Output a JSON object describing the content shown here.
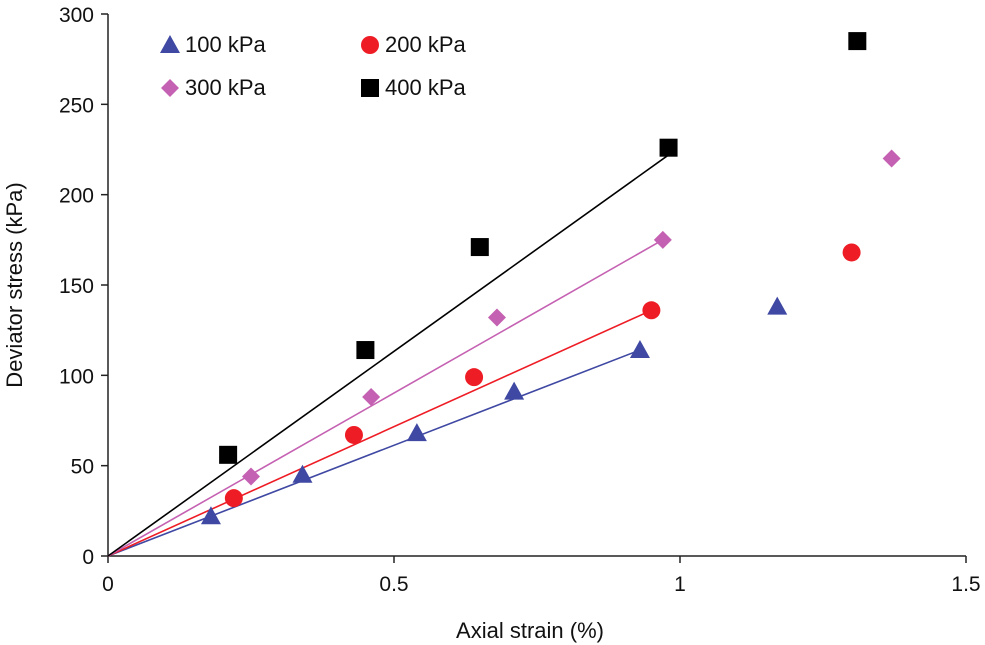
{
  "chart_data": {
    "type": "scatter",
    "title": "",
    "xlabel": "Axial strain (%)",
    "ylabel": "Deviator stress (kPa)",
    "xlim": [
      0,
      1.5
    ],
    "ylim": [
      0,
      300
    ],
    "x_ticks": [
      0,
      0.5,
      1,
      1.5
    ],
    "x_tick_labels": [
      "0",
      "0.5",
      "1",
      "1.5"
    ],
    "y_ticks": [
      0,
      50,
      100,
      150,
      200,
      250,
      300
    ],
    "y_tick_labels": [
      "0",
      "50",
      "100",
      "150",
      "200",
      "250",
      "300"
    ],
    "grid": false,
    "legend": "top-left",
    "series": [
      {
        "name": "100 kPa",
        "marker": "triangle",
        "color": "#3F48A2",
        "line_color": "#3F48A2",
        "x": [
          0.18,
          0.34,
          0.54,
          0.71,
          0.93,
          1.17
        ],
        "y": [
          22,
          45,
          68,
          91,
          114,
          138
        ],
        "fit_line": {
          "x": [
            0,
            0.93
          ],
          "y": [
            0,
            114
          ]
        }
      },
      {
        "name": "200 kPa",
        "marker": "circle",
        "color": "#EE1C25",
        "line_color": "#EE1C25",
        "x": [
          0.22,
          0.43,
          0.64,
          0.95,
          1.3
        ],
        "y": [
          32,
          67,
          99,
          136,
          168
        ],
        "fit_line": {
          "x": [
            0,
            0.95
          ],
          "y": [
            0,
            136
          ]
        }
      },
      {
        "name": "300 kPa",
        "marker": "diamond",
        "color": "#C561B2",
        "line_color": "#C561B2",
        "x": [
          0.25,
          0.46,
          0.68,
          0.97,
          1.37
        ],
        "y": [
          44,
          88,
          132,
          175,
          220
        ],
        "fit_line": {
          "x": [
            0,
            0.97
          ],
          "y": [
            0,
            175
          ]
        }
      },
      {
        "name": "400 kPa",
        "marker": "square",
        "color": "#000000",
        "line_color": "#000000",
        "x": [
          0.21,
          0.45,
          0.65,
          0.98,
          1.31
        ],
        "y": [
          56,
          114,
          171,
          226,
          285
        ],
        "fit_line": {
          "x": [
            0,
            0.98
          ],
          "y": [
            0,
            222
          ]
        }
      }
    ]
  }
}
